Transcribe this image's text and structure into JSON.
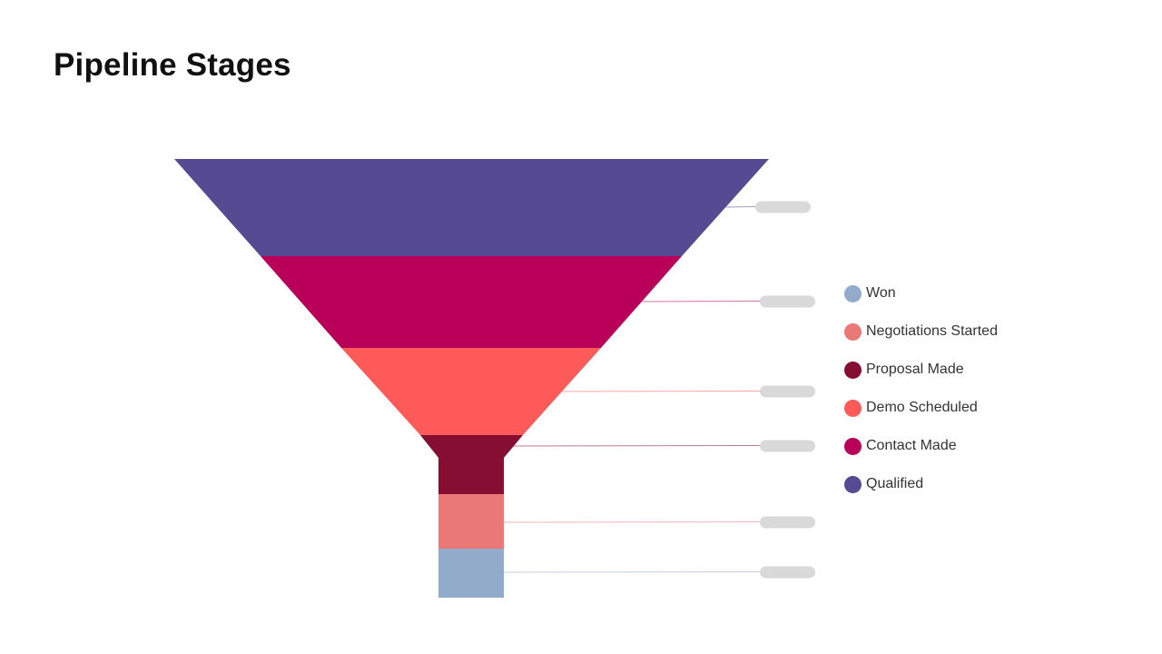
{
  "page": {
    "title": "Pipeline Stages"
  },
  "chart_data": {
    "type": "funnel",
    "title": "Pipeline Stages",
    "stages": [
      {
        "name": "Qualified",
        "color": "#564a92"
      },
      {
        "name": "Contact Made",
        "color": "#b80058"
      },
      {
        "name": "Demo Scheduled",
        "color": "#fe5a59"
      },
      {
        "name": "Proposal Made",
        "color": "#860e33"
      },
      {
        "name": "Negotiations Started",
        "color": "#e97877"
      },
      {
        "name": "Won",
        "color": "#93abcb"
      }
    ],
    "data_labels_visible": false,
    "legend": {
      "position": "right",
      "order": [
        "Won",
        "Negotiations Started",
        "Proposal Made",
        "Demo Scheduled",
        "Contact Made",
        "Qualified"
      ]
    }
  }
}
